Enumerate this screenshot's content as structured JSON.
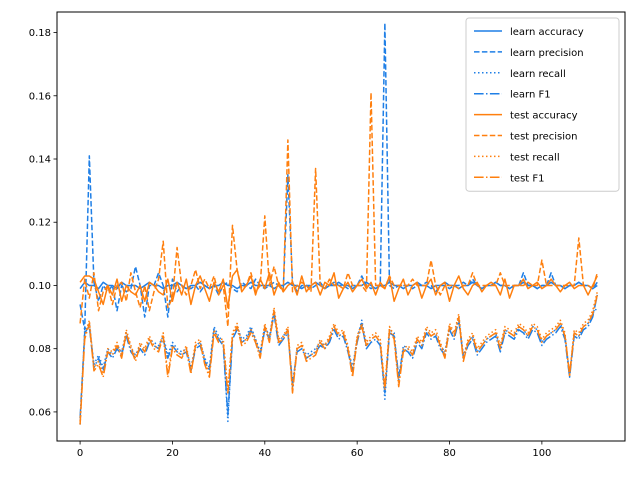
{
  "chart_data": {
    "type": "line",
    "title": "",
    "xlabel": "",
    "ylabel": "",
    "xlim": [
      -5,
      118
    ],
    "ylim": [
      0.0508,
      0.1865
    ],
    "xticks": [
      0,
      20,
      40,
      60,
      80,
      100
    ],
    "yticks": [
      0.06,
      0.08,
      0.1,
      0.12,
      0.14,
      0.16,
      0.18
    ],
    "grid": false,
    "legend_position": "top-right",
    "colors": {
      "learn": "#1f7fe6",
      "test": "#ff7f0e"
    },
    "x_count": 113,
    "series": [
      {
        "name": "learn accuracy",
        "group": "learn",
        "style": "solid",
        "values": [
          0.099,
          0.101,
          0.1,
          0.1,
          0.099,
          0.101,
          0.1,
          0.1,
          0.099,
          0.101,
          0.1,
          0.1,
          0.1,
          0.099,
          0.1,
          0.101,
          0.1,
          0.1,
          0.099,
          0.1,
          0.1,
          0.101,
          0.1,
          0.099,
          0.1,
          0.1,
          0.101,
          0.1,
          0.099,
          0.1,
          0.1,
          0.101,
          0.1,
          0.1,
          0.099,
          0.1,
          0.1,
          0.101,
          0.1,
          0.1,
          0.1,
          0.1,
          0.099,
          0.1,
          0.1,
          0.101,
          0.1,
          0.1,
          0.099,
          0.1,
          0.1,
          0.101,
          0.1,
          0.099,
          0.1,
          0.1,
          0.101,
          0.1,
          0.1,
          0.099,
          0.1,
          0.1,
          0.101,
          0.1,
          0.099,
          0.1,
          0.1,
          0.101,
          0.1,
          0.1,
          0.099,
          0.1,
          0.1,
          0.101,
          0.1,
          0.1,
          0.099,
          0.1,
          0.1,
          0.101,
          0.1,
          0.1,
          0.099,
          0.1,
          0.1,
          0.101,
          0.1,
          0.099,
          0.1,
          0.1,
          0.101,
          0.1,
          0.1,
          0.099,
          0.1,
          0.1,
          0.101,
          0.1,
          0.1,
          0.099,
          0.1,
          0.1,
          0.101,
          0.1,
          0.1,
          0.099,
          0.1,
          0.1,
          0.101,
          0.1,
          0.1,
          0.099,
          0.1
        ]
      },
      {
        "name": "learn precision",
        "group": "learn",
        "style": "dashed",
        "values": [
          0.094,
          0.086,
          0.141,
          0.101,
          0.095,
          0.1,
          0.098,
          0.1,
          0.092,
          0.1,
          0.098,
          0.099,
          0.106,
          0.1,
          0.09,
          0.1,
          0.1,
          0.104,
          0.1,
          0.09,
          0.102,
          0.098,
          0.1,
          0.099,
          0.099,
          0.1,
          0.098,
          0.1,
          0.099,
          0.1,
          0.097,
          0.1,
          0.101,
          0.099,
          0.098,
          0.101,
          0.1,
          0.099,
          0.102,
          0.1,
          0.099,
          0.1,
          0.101,
          0.1,
          0.099,
          0.135,
          0.101,
          0.098,
          0.1,
          0.1,
          0.099,
          0.1,
          0.101,
          0.099,
          0.1,
          0.101,
          0.1,
          0.1,
          0.099,
          0.1,
          0.1,
          0.103,
          0.1,
          0.099,
          0.1,
          0.1,
          0.183,
          0.1,
          0.099,
          0.1,
          0.1,
          0.1,
          0.099,
          0.1,
          0.1,
          0.101,
          0.1,
          0.098,
          0.1,
          0.1,
          0.099,
          0.1,
          0.1,
          0.101,
          0.1,
          0.102,
          0.1,
          0.099,
          0.1,
          0.1,
          0.101,
          0.1,
          0.1,
          0.099,
          0.1,
          0.1,
          0.104,
          0.1,
          0.1,
          0.099,
          0.1,
          0.1,
          0.104,
          0.1,
          0.1,
          0.099,
          0.1,
          0.1,
          0.101,
          0.1,
          0.1,
          0.099,
          0.101
        ]
      },
      {
        "name": "learn recall",
        "group": "learn",
        "style": "dotted",
        "values": [
          0.056,
          0.086,
          0.088,
          0.075,
          0.078,
          0.074,
          0.08,
          0.078,
          0.081,
          0.079,
          0.085,
          0.08,
          0.078,
          0.081,
          0.079,
          0.083,
          0.082,
          0.081,
          0.084,
          0.078,
          0.082,
          0.08,
          0.079,
          0.08,
          0.074,
          0.081,
          0.082,
          0.077,
          0.074,
          0.087,
          0.084,
          0.082,
          0.057,
          0.084,
          0.087,
          0.083,
          0.084,
          0.087,
          0.083,
          0.079,
          0.087,
          0.084,
          0.092,
          0.082,
          0.084,
          0.086,
          0.068,
          0.08,
          0.081,
          0.078,
          0.079,
          0.08,
          0.082,
          0.081,
          0.083,
          0.087,
          0.084,
          0.085,
          0.08,
          0.074,
          0.083,
          0.089,
          0.081,
          0.083,
          0.084,
          0.082,
          0.064,
          0.086,
          0.085,
          0.07,
          0.081,
          0.08,
          0.078,
          0.083,
          0.081,
          0.086,
          0.084,
          0.085,
          0.081,
          0.079,
          0.087,
          0.084,
          0.09,
          0.078,
          0.082,
          0.084,
          0.079,
          0.081,
          0.083,
          0.084,
          0.085,
          0.08,
          0.086,
          0.085,
          0.084,
          0.087,
          0.086,
          0.084,
          0.087,
          0.086,
          0.082,
          0.084,
          0.085,
          0.086,
          0.088,
          0.084,
          0.072,
          0.085,
          0.084,
          0.087,
          0.088,
          0.091,
          0.093
        ]
      },
      {
        "name": "learn F1",
        "group": "learn",
        "style": "dashdot",
        "values": [
          0.058,
          0.085,
          0.087,
          0.074,
          0.077,
          0.073,
          0.079,
          0.077,
          0.08,
          0.078,
          0.084,
          0.079,
          0.077,
          0.08,
          0.078,
          0.082,
          0.081,
          0.08,
          0.083,
          0.077,
          0.081,
          0.079,
          0.078,
          0.079,
          0.073,
          0.08,
          0.081,
          0.076,
          0.073,
          0.086,
          0.083,
          0.081,
          0.059,
          0.083,
          0.086,
          0.082,
          0.083,
          0.086,
          0.082,
          0.078,
          0.086,
          0.083,
          0.091,
          0.081,
          0.083,
          0.085,
          0.069,
          0.079,
          0.08,
          0.077,
          0.078,
          0.079,
          0.081,
          0.08,
          0.082,
          0.086,
          0.083,
          0.084,
          0.079,
          0.073,
          0.082,
          0.088,
          0.08,
          0.082,
          0.083,
          0.081,
          0.066,
          0.085,
          0.084,
          0.071,
          0.08,
          0.079,
          0.077,
          0.082,
          0.08,
          0.085,
          0.083,
          0.084,
          0.08,
          0.078,
          0.086,
          0.083,
          0.089,
          0.077,
          0.081,
          0.083,
          0.078,
          0.08,
          0.082,
          0.083,
          0.084,
          0.079,
          0.085,
          0.084,
          0.083,
          0.086,
          0.085,
          0.083,
          0.086,
          0.085,
          0.081,
          0.083,
          0.084,
          0.085,
          0.087,
          0.083,
          0.071,
          0.084,
          0.083,
          0.086,
          0.087,
          0.09,
          0.097
        ]
      },
      {
        "name": "test accuracy",
        "group": "test",
        "style": "solid",
        "values": [
          0.101,
          0.103,
          0.103,
          0.102,
          0.098,
          0.094,
          0.1,
          0.097,
          0.102,
          0.095,
          0.1,
          0.098,
          0.097,
          0.1,
          0.095,
          0.101,
          0.1,
          0.098,
          0.097,
          0.102,
          0.095,
          0.101,
          0.097,
          0.102,
          0.094,
          0.1,
          0.103,
          0.099,
          0.095,
          0.101,
          0.098,
          0.102,
          0.093,
          0.103,
          0.105,
          0.098,
          0.1,
          0.103,
          0.097,
          0.102,
          0.099,
          0.104,
          0.097,
          0.101,
          0.098,
          0.1,
          0.101,
          0.097,
          0.103,
          0.098,
          0.1,
          0.101,
          0.097,
          0.101,
          0.1,
          0.104,
          0.096,
          0.099,
          0.101,
          0.098,
          0.1,
          0.102,
          0.099,
          0.101,
          0.097,
          0.101,
          0.099,
          0.103,
          0.095,
          0.099,
          0.102,
          0.097,
          0.1,
          0.101,
          0.096,
          0.1,
          0.102,
          0.097,
          0.1,
          0.101,
          0.095,
          0.1,
          0.103,
          0.099,
          0.097,
          0.1,
          0.101,
          0.098,
          0.1,
          0.101,
          0.1,
          0.097,
          0.102,
          0.096,
          0.1,
          0.1,
          0.102,
          0.099,
          0.1,
          0.101,
          0.099,
          0.1,
          0.102,
          0.1,
          0.098,
          0.1,
          0.101,
          0.099,
          0.1,
          0.1,
          0.097,
          0.1,
          0.103
        ]
      },
      {
        "name": "test precision",
        "group": "test",
        "style": "dashed",
        "values": [
          0.088,
          0.102,
          0.096,
          0.104,
          0.092,
          0.098,
          0.1,
          0.094,
          0.1,
          0.101,
          0.095,
          0.104,
          0.098,
          0.093,
          0.1,
          0.092,
          0.098,
          0.102,
          0.114,
          0.093,
          0.096,
          0.112,
          0.1,
          0.097,
          0.1,
          0.105,
          0.099,
          0.102,
          0.099,
          0.103,
          0.097,
          0.1,
          0.087,
          0.119,
          0.105,
          0.099,
          0.1,
          0.104,
          0.098,
          0.1,
          0.122,
          0.1,
          0.106,
          0.1,
          0.098,
          0.146,
          0.098,
          0.1,
          0.101,
          0.1,
          0.098,
          0.137,
          0.1,
          0.099,
          0.102,
          0.1,
          0.1,
          0.099,
          0.104,
          0.1,
          0.1,
          0.1,
          0.098,
          0.161,
          0.1,
          0.1,
          0.099,
          0.103,
          0.1,
          0.1,
          0.1,
          0.1,
          0.102,
          0.1,
          0.1,
          0.1,
          0.108,
          0.1,
          0.097,
          0.1,
          0.1,
          0.1,
          0.099,
          0.1,
          0.1,
          0.104,
          0.1,
          0.1,
          0.1,
          0.1,
          0.1,
          0.104,
          0.1,
          0.1,
          0.1,
          0.1,
          0.1,
          0.101,
          0.1,
          0.1,
          0.108,
          0.1,
          0.1,
          0.1,
          0.1,
          0.1,
          0.1,
          0.1,
          0.115,
          0.1,
          0.1,
          0.099,
          0.104
        ]
      },
      {
        "name": "test recall",
        "group": "test",
        "style": "dotted",
        "values": [
          0.057,
          0.084,
          0.089,
          0.074,
          0.076,
          0.072,
          0.08,
          0.079,
          0.082,
          0.078,
          0.086,
          0.081,
          0.077,
          0.082,
          0.08,
          0.084,
          0.081,
          0.08,
          0.085,
          0.072,
          0.081,
          0.079,
          0.078,
          0.081,
          0.073,
          0.082,
          0.083,
          0.076,
          0.072,
          0.086,
          0.083,
          0.083,
          0.067,
          0.085,
          0.088,
          0.082,
          0.083,
          0.086,
          0.083,
          0.078,
          0.088,
          0.083,
          0.093,
          0.083,
          0.084,
          0.087,
          0.067,
          0.081,
          0.082,
          0.077,
          0.078,
          0.079,
          0.083,
          0.081,
          0.084,
          0.088,
          0.085,
          0.086,
          0.081,
          0.072,
          0.084,
          0.088,
          0.082,
          0.084,
          0.085,
          0.083,
          0.068,
          0.087,
          0.084,
          0.069,
          0.08,
          0.081,
          0.079,
          0.084,
          0.082,
          0.087,
          0.085,
          0.086,
          0.082,
          0.078,
          0.088,
          0.085,
          0.091,
          0.077,
          0.083,
          0.085,
          0.08,
          0.082,
          0.084,
          0.085,
          0.086,
          0.081,
          0.087,
          0.086,
          0.085,
          0.088,
          0.087,
          0.085,
          0.088,
          0.087,
          0.083,
          0.085,
          0.086,
          0.087,
          0.089,
          0.085,
          0.071,
          0.086,
          0.085,
          0.088,
          0.089,
          0.092,
          0.098
        ]
      },
      {
        "name": "test F1",
        "group": "test",
        "style": "dashdot",
        "values": [
          0.056,
          0.083,
          0.088,
          0.073,
          0.075,
          0.071,
          0.079,
          0.078,
          0.081,
          0.077,
          0.085,
          0.08,
          0.076,
          0.081,
          0.079,
          0.083,
          0.08,
          0.079,
          0.084,
          0.071,
          0.08,
          0.078,
          0.077,
          0.08,
          0.072,
          0.081,
          0.082,
          0.075,
          0.071,
          0.085,
          0.082,
          0.082,
          0.066,
          0.084,
          0.087,
          0.081,
          0.082,
          0.085,
          0.082,
          0.077,
          0.087,
          0.082,
          0.092,
          0.082,
          0.083,
          0.086,
          0.066,
          0.08,
          0.081,
          0.076,
          0.077,
          0.078,
          0.082,
          0.08,
          0.083,
          0.087,
          0.084,
          0.085,
          0.08,
          0.071,
          0.083,
          0.087,
          0.081,
          0.083,
          0.084,
          0.082,
          0.067,
          0.086,
          0.083,
          0.068,
          0.079,
          0.08,
          0.078,
          0.083,
          0.081,
          0.086,
          0.084,
          0.085,
          0.081,
          0.077,
          0.087,
          0.084,
          0.09,
          0.076,
          0.082,
          0.084,
          0.079,
          0.081,
          0.083,
          0.084,
          0.085,
          0.08,
          0.086,
          0.085,
          0.084,
          0.087,
          0.086,
          0.084,
          0.087,
          0.086,
          0.082,
          0.084,
          0.085,
          0.086,
          0.088,
          0.084,
          0.072,
          0.085,
          0.084,
          0.087,
          0.088,
          0.091,
          0.097
        ]
      }
    ]
  }
}
